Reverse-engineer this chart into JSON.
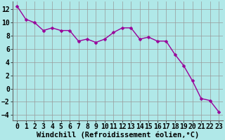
{
  "x": [
    0,
    1,
    2,
    3,
    4,
    5,
    6,
    7,
    8,
    9,
    10,
    11,
    12,
    13,
    14,
    15,
    16,
    17,
    18,
    19,
    20,
    21,
    22,
    23
  ],
  "y": [
    12.5,
    10.5,
    10.0,
    8.8,
    9.2,
    8.8,
    8.8,
    7.2,
    7.5,
    7.0,
    7.5,
    8.5,
    9.2,
    9.2,
    7.5,
    7.8,
    7.2,
    7.2,
    5.2,
    3.5,
    1.2,
    -1.5,
    -1.8,
    -3.5
  ],
  "line_color": "#990099",
  "marker_color": "#990099",
  "bg_color": "#b0e8e8",
  "grid_color": "#999999",
  "xlabel": "Windchill (Refroidissement éolien,°C)",
  "xlim": [
    -0.5,
    23.5
  ],
  "ylim": [
    -4.8,
    13.2
  ],
  "yticks": [
    -4,
    -2,
    0,
    2,
    4,
    6,
    8,
    10,
    12
  ],
  "xticks": [
    0,
    1,
    2,
    3,
    4,
    5,
    6,
    7,
    8,
    9,
    10,
    11,
    12,
    13,
    14,
    15,
    16,
    17,
    18,
    19,
    20,
    21,
    22,
    23
  ],
  "xlabel_fontsize": 7.5,
  "tick_fontsize": 7,
  "line_width": 1.0,
  "marker_size": 2.5
}
